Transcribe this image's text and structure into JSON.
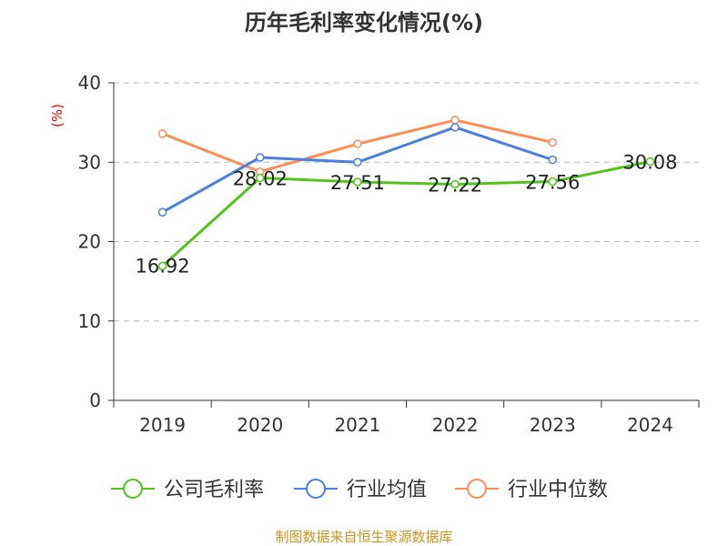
{
  "chart_data": {
    "type": "line",
    "title": "历年毛利率变化情况(%)",
    "ylabel": "(%)",
    "xlabel": "",
    "categories": [
      "2019",
      "2020",
      "2021",
      "2022",
      "2023",
      "2024"
    ],
    "ylim": [
      0,
      40
    ],
    "yticks": [
      0,
      10,
      20,
      30,
      40
    ],
    "grid": true,
    "legend_position": "bottom",
    "series": [
      {
        "name": "公司毛利率",
        "color": "#52c41a",
        "values": [
          16.92,
          28.02,
          27.51,
          27.22,
          27.56,
          30.08
        ],
        "labels": [
          "16.92",
          "28.02",
          "27.51",
          "27.22",
          "27.56",
          "30.08"
        ]
      },
      {
        "name": "行业均值",
        "color": "#4a7ee0",
        "values": [
          23.7,
          30.6,
          30.0,
          34.4,
          30.3,
          null
        ]
      },
      {
        "name": "行业中位数",
        "color": "#ff8c55",
        "values": [
          33.6,
          28.8,
          32.3,
          35.3,
          32.5,
          null
        ]
      }
    ],
    "source": "制图数据来自恒生聚源数据库"
  }
}
